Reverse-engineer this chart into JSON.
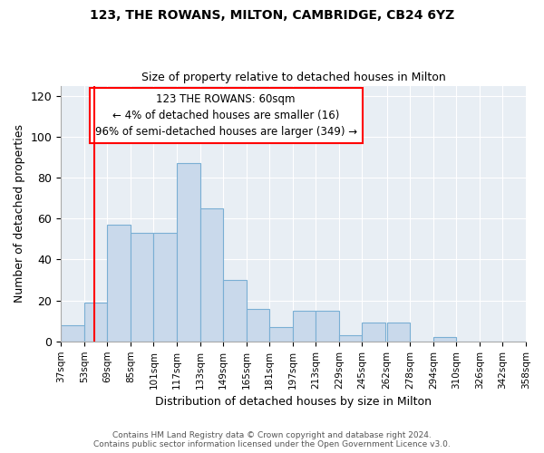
{
  "title1": "123, THE ROWANS, MILTON, CAMBRIDGE, CB24 6YZ",
  "title2": "Size of property relative to detached houses in Milton",
  "xlabel": "Distribution of detached houses by size in Milton",
  "ylabel": "Number of detached properties",
  "bar_left_edges": [
    37,
    53,
    69,
    85,
    101,
    117,
    133,
    149,
    165,
    181,
    197,
    213,
    229,
    245,
    262,
    278,
    294,
    310,
    326,
    342
  ],
  "bar_heights": [
    8,
    19,
    57,
    53,
    53,
    87,
    65,
    30,
    16,
    7,
    15,
    15,
    3,
    9,
    9,
    0,
    2,
    0,
    0,
    0
  ],
  "bin_width": 16,
  "bar_color": "#c9d9eb",
  "bar_edgecolor": "#7aafd4",
  "ylim": [
    0,
    125
  ],
  "yticks": [
    0,
    20,
    40,
    60,
    80,
    100,
    120
  ],
  "xtick_labels": [
    "37sqm",
    "53sqm",
    "69sqm",
    "85sqm",
    "101sqm",
    "117sqm",
    "133sqm",
    "149sqm",
    "165sqm",
    "181sqm",
    "197sqm",
    "213sqm",
    "229sqm",
    "245sqm",
    "262sqm",
    "278sqm",
    "294sqm",
    "310sqm",
    "326sqm",
    "342sqm",
    "358sqm"
  ],
  "red_line_x": 60,
  "annotation_line1": "123 THE ROWANS: 60sqm",
  "annotation_line2": "← 4% of detached houses are smaller (16)",
  "annotation_line3": "96% of semi-detached houses are larger (349) →",
  "bg_color": "#e8eef4",
  "grid_color": "#ffffff",
  "footer1": "Contains HM Land Registry data © Crown copyright and database right 2024.",
  "footer2": "Contains public sector information licensed under the Open Government Licence v3.0.",
  "title1_fontsize": 10,
  "title2_fontsize": 9,
  "ylabel_fontsize": 9,
  "xlabel_fontsize": 9,
  "ytick_fontsize": 9,
  "xtick_fontsize": 7.5
}
